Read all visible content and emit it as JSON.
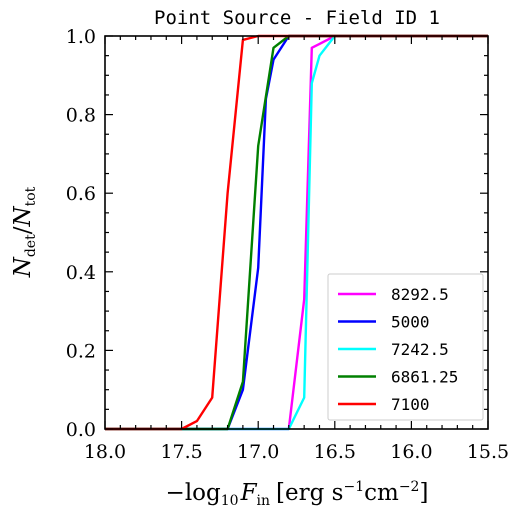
{
  "chart_data": {
    "type": "line",
    "title": "Point Source - Field ID 1",
    "xlabel": "−log₁₀F_in [erg s⁻¹cm⁻²]",
    "ylabel": "N_det/N_tot",
    "xlim": [
      18.0,
      15.5
    ],
    "ylim": [
      0.0,
      1.0
    ],
    "x_ticks": [
      18.0,
      17.5,
      17.0,
      16.5,
      16.0,
      15.5
    ],
    "x_tick_labels": [
      "18.0",
      "17.5",
      "17.0",
      "16.5",
      "16.0",
      "15.5"
    ],
    "y_ticks": [
      0.0,
      0.2,
      0.4,
      0.6,
      0.8,
      1.0
    ],
    "y_tick_labels": [
      "0.0",
      "0.2",
      "0.4",
      "0.6",
      "0.8",
      "1.0"
    ],
    "grid": false,
    "legend_position": "bottom-right",
    "series": [
      {
        "name": "8292.5",
        "color": "#ff00ff",
        "x": [
          18.0,
          16.8,
          16.7,
          16.65,
          16.6,
          16.5,
          15.5
        ],
        "y": [
          0.0,
          0.0,
          0.33,
          0.97,
          0.98,
          1.0,
          1.0
        ]
      },
      {
        "name": "5000",
        "color": "#0000ff",
        "x": [
          18.0,
          17.2,
          17.1,
          17.0,
          16.95,
          16.9,
          16.8,
          15.5
        ],
        "y": [
          0.0,
          0.0,
          0.1,
          0.41,
          0.84,
          0.94,
          1.0,
          1.0
        ]
      },
      {
        "name": "7242.5",
        "color": "#00ffff",
        "x": [
          18.0,
          16.8,
          16.7,
          16.65,
          16.6,
          16.5,
          15.5
        ],
        "y": [
          0.0,
          0.0,
          0.08,
          0.88,
          0.95,
          1.0,
          1.0
        ]
      },
      {
        "name": "6861.25",
        "color": "#008000",
        "x": [
          18.0,
          17.2,
          17.1,
          17.0,
          16.9,
          16.8,
          15.5
        ],
        "y": [
          0.0,
          0.0,
          0.12,
          0.72,
          0.97,
          1.0,
          1.0
        ]
      },
      {
        "name": "7100",
        "color": "#ff0000",
        "x": [
          18.0,
          17.5,
          17.4,
          17.3,
          17.2,
          17.1,
          17.0,
          15.5
        ],
        "y": [
          0.0,
          0.0,
          0.02,
          0.08,
          0.6,
          0.99,
          1.0,
          1.0
        ]
      }
    ]
  }
}
